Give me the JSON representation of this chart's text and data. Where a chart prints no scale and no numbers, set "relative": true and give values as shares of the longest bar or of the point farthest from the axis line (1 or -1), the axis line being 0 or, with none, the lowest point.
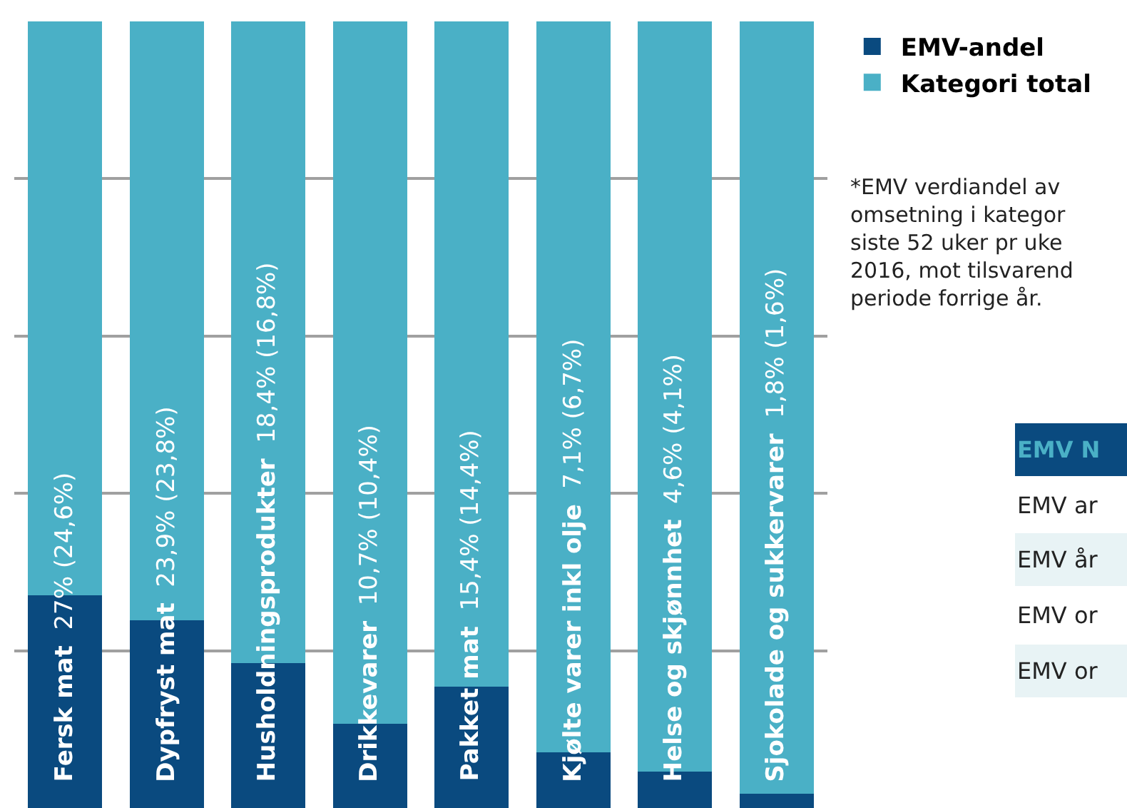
{
  "chart_data": {
    "type": "bar",
    "stacked": true,
    "relative": true,
    "grid": "y",
    "legend": "top right",
    "tick_labels": false,
    "categories": [
      "Fersk mat",
      "Dypfryst mat",
      "Husholdningsprodukter",
      "Drikkevarer",
      "Pakket mat",
      "Kjølte varer inkl olje",
      "Helse og skjønnhet",
      "Sjokolade og sukkervarer"
    ],
    "value_labels": [
      "27% (24,6%)",
      "23,9% (23,8%)",
      "18,4% (16,8%)",
      "10,7% (10,4%)",
      "15,4% (14,4%)",
      "7,1% (6,7%)",
      "4,6% (4,1%)",
      "1,8% (1,6%)"
    ],
    "series": [
      {
        "name": "EMV-andel",
        "color": "#0a4a7f",
        "values": [
          0.27,
          0.239,
          0.184,
          0.107,
          0.154,
          0.071,
          0.046,
          0.018
        ]
      },
      {
        "name": "Kategori total",
        "color": "#4ab0c6",
        "values": [
          0.73,
          0.761,
          0.816,
          0.893,
          0.846,
          0.929,
          0.954,
          0.982
        ]
      }
    ],
    "annotations": [
      "*EMV verdiandel av\nomsetning i kategor\nsiste 52 uker pr uke\n2016, mot tilsvarend\nperiode forrige år.",
      "EMV N",
      "EMV ar",
      "EMV år",
      "EMV or",
      "EMV or"
    ]
  }
}
